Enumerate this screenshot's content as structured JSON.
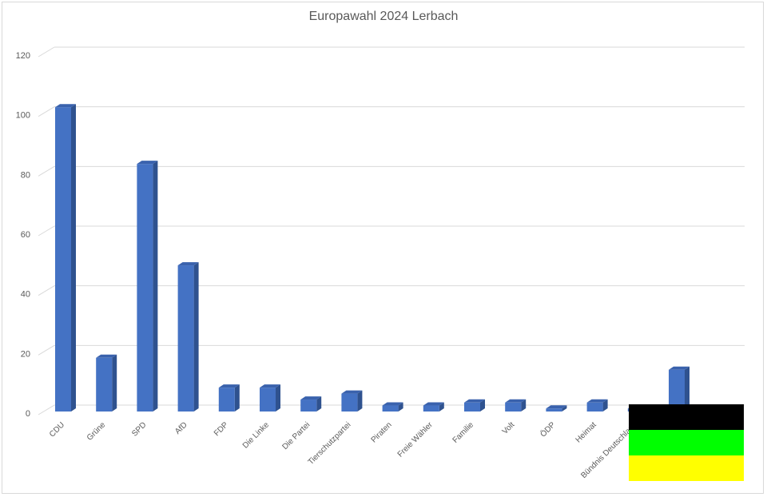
{
  "chart_data": {
    "type": "bar",
    "title": "Europawahl 2024 Lerbach",
    "xlabel": "",
    "ylabel": "",
    "ylim": [
      0,
      120
    ],
    "yticks": [
      0,
      20,
      40,
      60,
      80,
      100,
      120
    ],
    "grid": true,
    "categories": [
      "CDU",
      "Grüne",
      "SPD",
      "AfD",
      "FDP",
      "Die Linke",
      "Die Partei",
      "Tierschutzpartei",
      "Piraten",
      "Freie Wähler",
      "Familie",
      "Volt",
      "ÖDP",
      "Heimat",
      "Bündnis Deutschland",
      ""
    ],
    "values": [
      102,
      18,
      83,
      49,
      8,
      8,
      4,
      6,
      2,
      2,
      3,
      3,
      1,
      3,
      1,
      14
    ],
    "colors": {
      "bar_front": "#4472c4",
      "bar_side": "#2f528f",
      "bar_top": "#3a62ad",
      "grid": "#d9d9d9",
      "text": "#595959"
    }
  },
  "flag": {
    "stripes": [
      "#000000",
      "#00ff00",
      "#ffff00"
    ]
  }
}
